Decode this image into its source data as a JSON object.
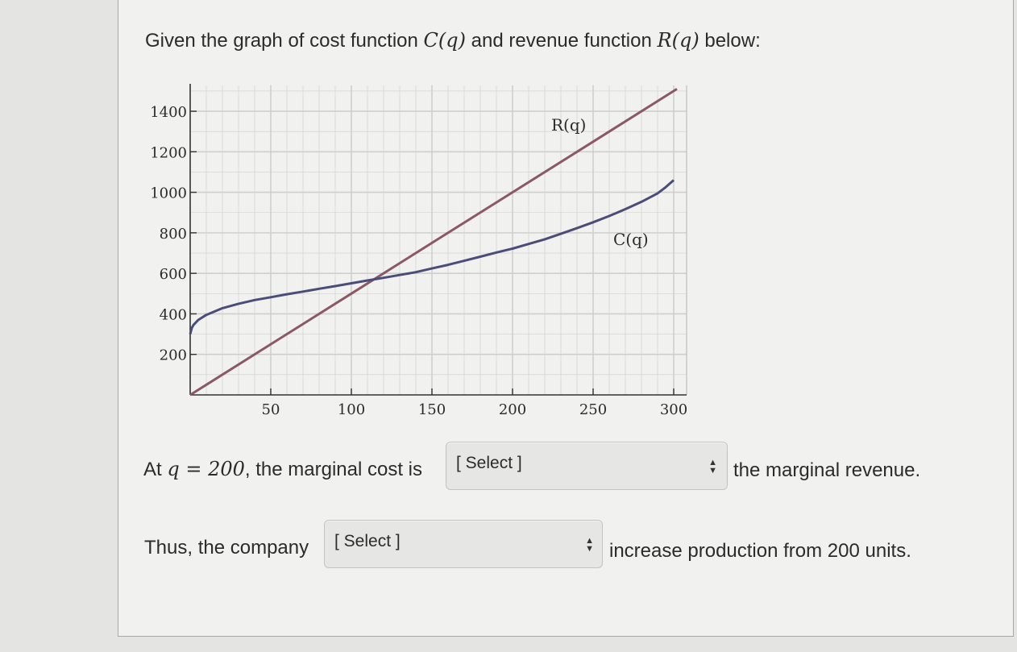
{
  "question": {
    "title_prefix": "Given the graph of cost function ",
    "C_symbol": "C(q)",
    "title_middle": " and revenue function ",
    "R_symbol": "R(q)",
    "title_suffix": " below:"
  },
  "chart_data": {
    "type": "line",
    "xlim": [
      0,
      305
    ],
    "ylim": [
      0,
      1500
    ],
    "x_ticks": [
      50,
      100,
      150,
      200,
      250,
      300
    ],
    "y_ticks": [
      200,
      400,
      600,
      800,
      1000,
      1200,
      1400
    ],
    "grid": true,
    "series": [
      {
        "name": "R(q)",
        "color": "#8a5866",
        "x": [
          0,
          50,
          100,
          150,
          200,
          250,
          300,
          302
        ],
        "y": [
          0,
          250,
          500,
          750,
          1000,
          1250,
          1500,
          1510
        ]
      },
      {
        "name": "C(q)",
        "color": "#4a4d78",
        "x": [
          0,
          1,
          2,
          5,
          10,
          20,
          30,
          40,
          50,
          60,
          70,
          80,
          90,
          100,
          110,
          120,
          130,
          140,
          150,
          160,
          170,
          180,
          190,
          200,
          210,
          220,
          230,
          240,
          250,
          260,
          270,
          280,
          290,
          295,
          300
        ],
        "y": [
          300,
          330,
          345,
          370,
          395,
          428,
          450,
          468,
          482,
          497,
          510,
          524,
          537,
          551,
          565,
          578,
          592,
          606,
          624,
          642,
          662,
          682,
          703,
          722,
          745,
          768,
          795,
          823,
          852,
          883,
          917,
          953,
          995,
          1025,
          1060
        ]
      }
    ]
  },
  "line1": {
    "prefix": "At ",
    "q_eq": "q = 200",
    "middle": ", the marginal cost is",
    "suffix": "the marginal revenue.",
    "select_label": "[ Select ]"
  },
  "line2": {
    "prefix": "Thus, the company",
    "suffix": "increase production from 200 units.",
    "select_label": "[ Select ]"
  },
  "colors": {
    "revenue": "#8a5866",
    "cost": "#4a4d78",
    "grid": "#cfcfcd"
  }
}
